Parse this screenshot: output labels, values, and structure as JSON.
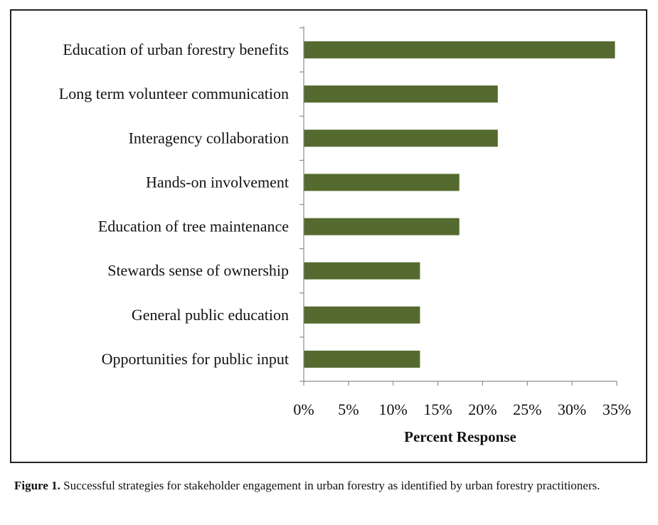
{
  "chart_data": {
    "type": "bar",
    "orientation": "horizontal",
    "categories": [
      "Education of urban forestry benefits",
      "Long term volunteer communication",
      "Interagency collaboration",
      "Hands-on involvement",
      "Education of tree maintenance",
      "Stewards sense of ownership",
      "General public education",
      "Opportunities for public input"
    ],
    "values": [
      34.8,
      21.7,
      21.7,
      17.4,
      17.4,
      13.0,
      13.0,
      13.0
    ],
    "xlabel": "Percent Response",
    "ylabel": "",
    "xlim": [
      0,
      35
    ],
    "ticks": [
      "0%",
      "5%",
      "10%",
      "15%",
      "20%",
      "25%",
      "30%",
      "35%"
    ],
    "bar_color": "#546a2e",
    "grid": false,
    "legend": "none"
  },
  "caption": {
    "label": "Figure 1.",
    "text": " Successful strategies for stakeholder engagement in urban forestry as identified by urban forestry practitioners."
  }
}
